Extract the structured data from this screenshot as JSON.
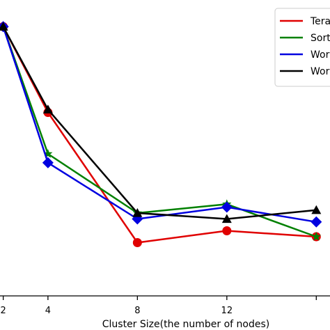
{
  "chart_data": {
    "type": "line",
    "xlabel": "Cluster Size(the number of nodes)",
    "ylabel": "",
    "title": "",
    "x": [
      2,
      4,
      8,
      12,
      16
    ],
    "xticks": [
      "2",
      "4",
      "8",
      "12"
    ],
    "xlim": [
      1.7,
      16.8
    ],
    "ylim": [
      0,
      1.0
    ],
    "grid": false,
    "legend": "top-right",
    "series": [
      {
        "name": "Tera",
        "color": "#e00000",
        "marker": "circle",
        "values": [
          0.91,
          0.62,
          0.18,
          0.22,
          0.2
        ]
      },
      {
        "name": "Sort",
        "color": "#008000",
        "marker": "star",
        "values": [
          0.91,
          0.48,
          0.28,
          0.31,
          0.2
        ]
      },
      {
        "name": "Wor",
        "color": "#0000e0",
        "marker": "diamond",
        "values": [
          0.91,
          0.45,
          0.26,
          0.3,
          0.25
        ]
      },
      {
        "name": "Wor",
        "color": "#000000",
        "marker": "triangle",
        "values": [
          0.91,
          0.63,
          0.28,
          0.26,
          0.29
        ]
      }
    ]
  }
}
